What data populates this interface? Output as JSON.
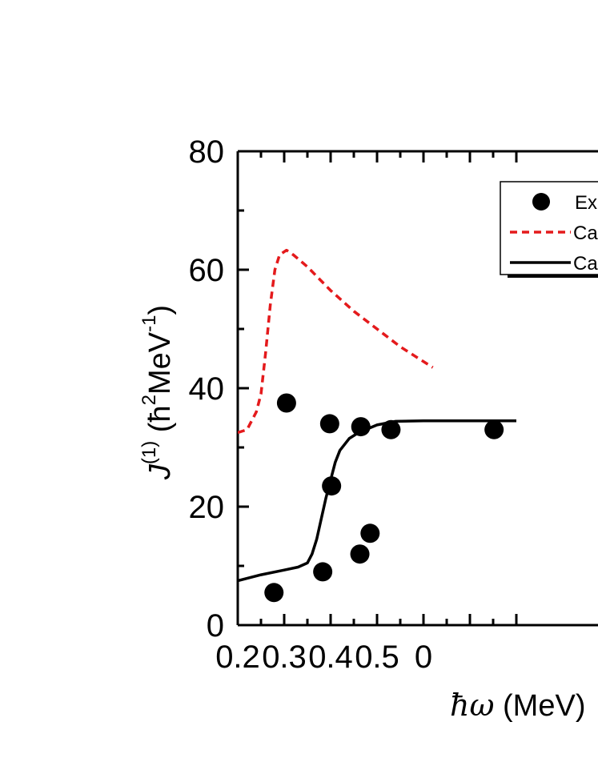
{
  "chart_data": {
    "type": "scatter",
    "title": "",
    "xlabel": {
      "symbol": "ħω",
      "text": "(MeV)"
    },
    "ylabel": {
      "symbol": "J",
      "superscript": "(1)",
      "unit_prefix": "(ħ",
      "unit_exp": "2",
      "unit_mid": "MeV",
      "unit_exp2": "-1",
      "unit_close": ")"
    },
    "xlim": [
      0.2,
      0.8
    ],
    "ylim": [
      0,
      80
    ],
    "x_ticks": [
      "0.2",
      "0.3",
      "0.4",
      "0.5",
      "0"
    ],
    "y_ticks": [
      "0",
      "20",
      "40",
      "60",
      "80"
    ],
    "grid": false,
    "legend_position": "top-right",
    "legend": [
      {
        "label": "Ex",
        "marker": "circle",
        "color": "#000000"
      },
      {
        "label": "Ca",
        "style": "dashed",
        "color": "#e41a1c"
      },
      {
        "label": "Ca",
        "style": "solid",
        "color": "#000000"
      }
    ],
    "series": [
      {
        "style": "points",
        "color": "#000000",
        "points": [
          [
            0.278,
            5.5
          ],
          [
            0.305,
            37.5
          ],
          [
            0.383,
            9.0
          ],
          [
            0.398,
            34.0
          ],
          [
            0.402,
            23.5
          ],
          [
            0.463,
            12.0
          ],
          [
            0.465,
            33.5
          ],
          [
            0.485,
            15.5
          ],
          [
            0.53,
            33.0
          ],
          [
            0.752,
            33.0
          ]
        ]
      },
      {
        "style": "dashed",
        "color": "#e41a1c",
        "points": [
          [
            0.2,
            32.5
          ],
          [
            0.22,
            33.0
          ],
          [
            0.24,
            36.0
          ],
          [
            0.25,
            39.0
          ],
          [
            0.26,
            46.0
          ],
          [
            0.27,
            54.0
          ],
          [
            0.28,
            60.0
          ],
          [
            0.29,
            62.5
          ],
          [
            0.305,
            63.3
          ],
          [
            0.32,
            62.5
          ],
          [
            0.35,
            60.5
          ],
          [
            0.4,
            56.5
          ],
          [
            0.45,
            53.0
          ],
          [
            0.5,
            50.0
          ],
          [
            0.55,
            47.0
          ],
          [
            0.58,
            45.5
          ],
          [
            0.62,
            43.5
          ]
        ]
      },
      {
        "style": "solid",
        "color": "#000000",
        "points": [
          [
            0.2,
            7.5
          ],
          [
            0.25,
            8.5
          ],
          [
            0.3,
            9.3
          ],
          [
            0.33,
            9.8
          ],
          [
            0.35,
            10.5
          ],
          [
            0.36,
            12.0
          ],
          [
            0.37,
            14.5
          ],
          [
            0.38,
            18.0
          ],
          [
            0.39,
            21.5
          ],
          [
            0.4,
            24.5
          ],
          [
            0.41,
            27.5
          ],
          [
            0.42,
            29.5
          ],
          [
            0.44,
            31.5
          ],
          [
            0.46,
            32.5
          ],
          [
            0.5,
            33.8
          ],
          [
            0.54,
            34.4
          ],
          [
            0.6,
            34.5
          ],
          [
            0.7,
            34.5
          ],
          [
            0.8,
            34.5
          ]
        ]
      }
    ]
  }
}
